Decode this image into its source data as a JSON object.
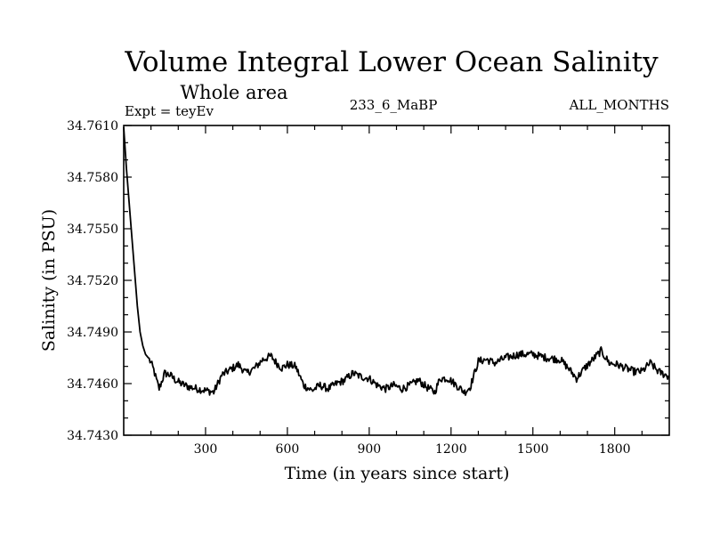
{
  "chart_data": {
    "type": "line",
    "title": "Volume Integral Lower Ocean Salinity",
    "subtitle": "Whole area",
    "expt_label": "Expt = teyEv",
    "center_label": "233_6_MaBP",
    "right_label": "ALL_MONTHS",
    "xlabel": "Time (in years since start)",
    "ylabel": "Salinity (in PSU)",
    "xlim": [
      0,
      2000
    ],
    "ylim": [
      34.743,
      34.761
    ],
    "xticks": [
      300,
      600,
      900,
      1200,
      1500,
      1800
    ],
    "xtick_labels": [
      "300",
      "600",
      "900",
      "1200",
      "1500",
      "1800"
    ],
    "yticks": [
      34.743,
      34.746,
      34.749,
      34.752,
      34.755,
      34.758,
      34.761
    ],
    "ytick_labels": [
      "34.7430",
      "34.7460",
      "34.7490",
      "34.7520",
      "34.7550",
      "34.7580",
      "34.7610"
    ],
    "series": [
      {
        "name": "Salinity",
        "x": [
          0,
          10,
          20,
          30,
          40,
          50,
          60,
          70,
          80,
          90,
          100,
          110,
          120,
          130,
          150,
          170,
          190,
          210,
          240,
          270,
          300,
          330,
          360,
          390,
          420,
          450,
          480,
          510,
          540,
          560,
          580,
          600,
          630,
          660,
          690,
          720,
          750,
          780,
          810,
          840,
          870,
          900,
          930,
          960,
          990,
          1020,
          1050,
          1080,
          1110,
          1140,
          1160,
          1190,
          1220,
          1250,
          1270,
          1300,
          1330,
          1360,
          1400,
          1450,
          1500,
          1550,
          1600,
          1630,
          1660,
          1690,
          1720,
          1750,
          1780,
          1810,
          1840,
          1870,
          1900,
          1930,
          1960,
          2000
        ],
        "values": [
          34.7609,
          34.7585,
          34.7565,
          34.7545,
          34.7525,
          34.7505,
          34.749,
          34.7482,
          34.7477,
          34.7475,
          34.7472,
          34.7468,
          34.7462,
          34.7457,
          34.7466,
          34.7465,
          34.7462,
          34.746,
          34.7458,
          34.7457,
          34.7456,
          34.7455,
          34.7465,
          34.7468,
          34.7471,
          34.7466,
          34.7469,
          34.7474,
          34.7476,
          34.7472,
          34.7469,
          34.7471,
          34.747,
          34.7459,
          34.7456,
          34.7459,
          34.7457,
          34.746,
          34.7462,
          34.7466,
          34.7464,
          34.7463,
          34.7459,
          34.7457,
          34.7459,
          34.7457,
          34.7459,
          34.7462,
          34.7458,
          34.7455,
          34.7463,
          34.7463,
          34.7459,
          34.7455,
          34.7458,
          34.7473,
          34.7474,
          34.7472,
          34.7475,
          34.7477,
          34.7477,
          34.7475,
          34.7474,
          34.7469,
          34.7463,
          34.7469,
          34.7474,
          34.7479,
          34.7472,
          34.7471,
          34.7469,
          34.7467,
          34.7467,
          34.7472,
          34.7467,
          34.7464
        ]
      }
    ]
  }
}
